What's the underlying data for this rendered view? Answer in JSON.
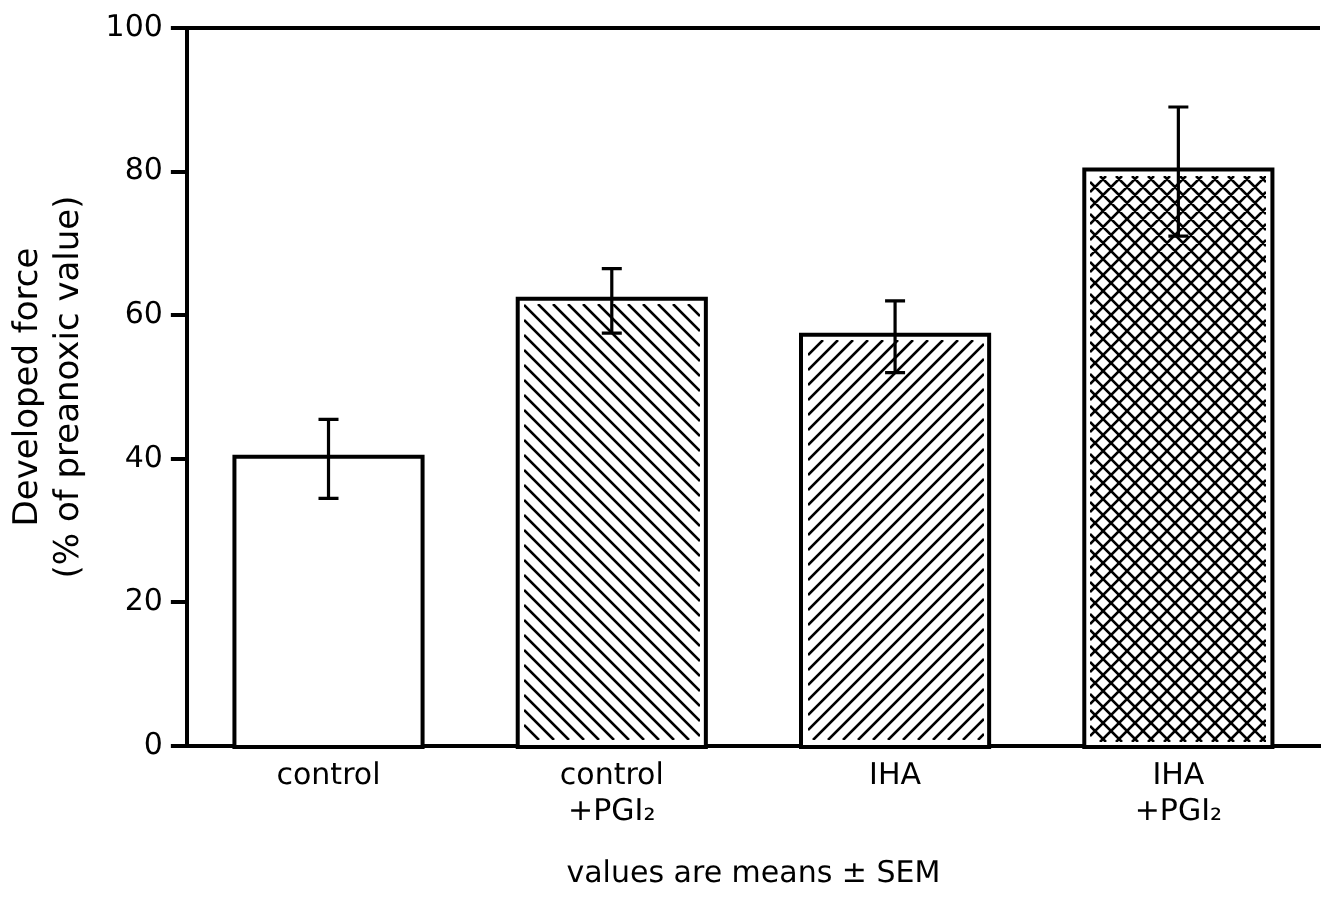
{
  "chart_data": {
    "type": "bar",
    "ylabel": "Developed force\n(% of preanoxic value)",
    "categories": [
      "control",
      "control\n+PGI₂",
      "IHA",
      "IHA\n+PGI₂"
    ],
    "values": [
      40,
      62,
      57,
      80
    ],
    "errors": [
      5.5,
      4.5,
      5,
      9
    ],
    "colors": [
      "#ffffff",
      "#ffffff",
      "#ffffff",
      "#ffffff"
    ],
    "ylim": [
      0,
      100
    ],
    "yticks": [
      0,
      20,
      40,
      60,
      80,
      100
    ],
    "grid": false,
    "legend": false,
    "annotations": [
      "values are means ± SEM"
    ]
  }
}
